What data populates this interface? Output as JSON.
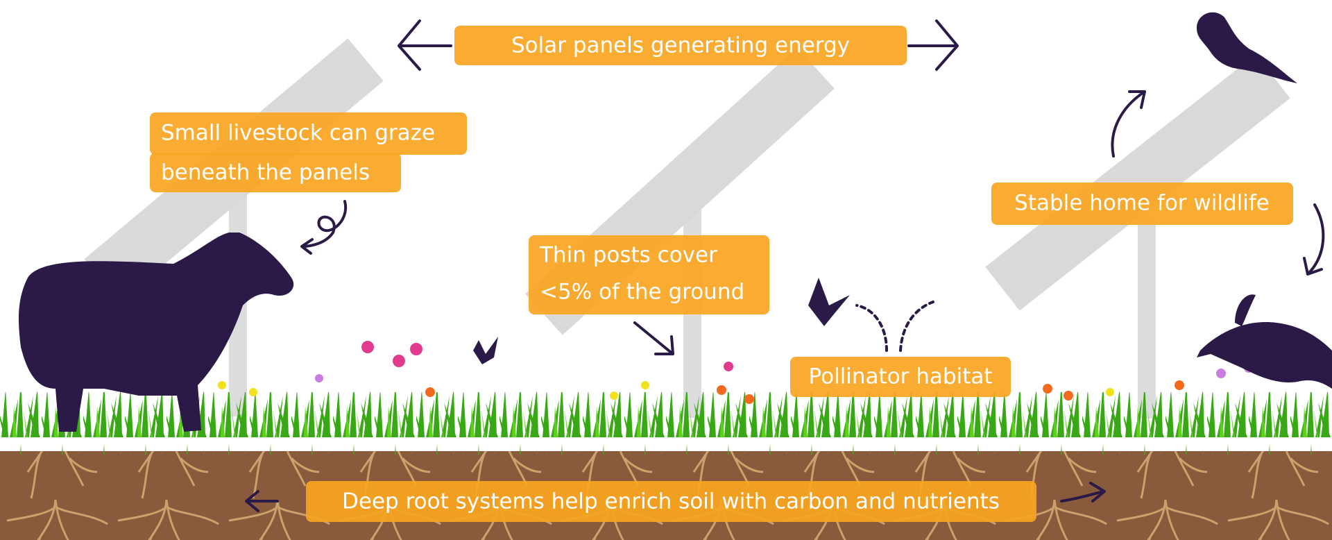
{
  "labels": {
    "solar": "Solar panels generating energy",
    "livestock": [
      "Small livestock can graze",
      "beneath the panels"
    ],
    "posts": [
      "Thin posts cover",
      "<5% of the ground"
    ],
    "wildlife": "Stable home for wildlife",
    "pollinator": "Pollinator habitat",
    "roots": "Deep root systems help enrich soil with carbon and nutrients"
  }
}
